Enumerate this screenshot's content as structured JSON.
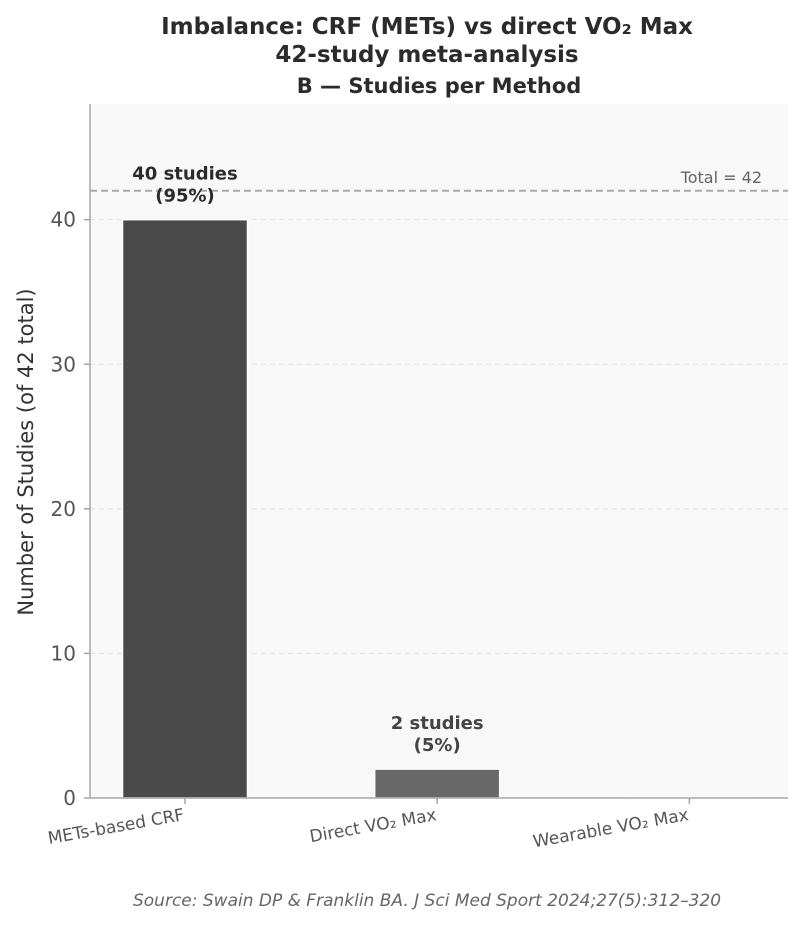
{
  "chart_data": {
    "type": "bar",
    "title": "Imbalance: CRF (METs) vs direct VO₂ Max",
    "subtitle_line": "42-study meta-analysis",
    "panel_title": "B — Studies per Method",
    "ylabel": "Number of Studies (of 42 total)",
    "xlabel": "",
    "categories": [
      "METs-based CRF",
      "Direct VO₂ Max",
      "Wearable VO₂ Max"
    ],
    "values": [
      40,
      2,
      0
    ],
    "bar_labels": [
      [
        "40 studies",
        "(95%)"
      ],
      [
        "2 studies",
        "(5%)"
      ],
      []
    ],
    "bar_colors": [
      "#4a4a4a",
      "#686868",
      "#8a8a8a"
    ],
    "bar_label_colors": [
      "#2b2b2b",
      "#444444",
      "#444444"
    ],
    "yticks": [
      0,
      10,
      20,
      30,
      40
    ],
    "ylim": [
      0,
      48
    ],
    "reference_line": {
      "value": 42,
      "label": "Total = 42"
    },
    "grid": "horizontal dashed",
    "source": "Source: Swain DP & Franklin BA. J Sci Med Sport 2024;27(5):312–320"
  }
}
